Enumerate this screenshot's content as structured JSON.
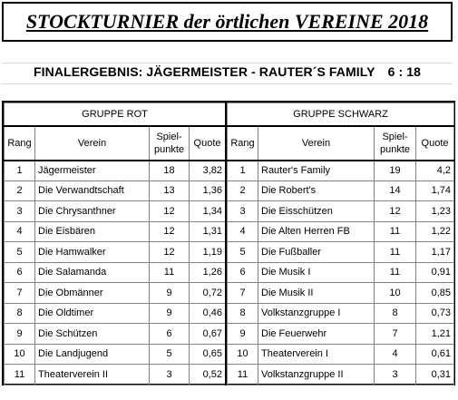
{
  "title": "STOCKTURNIER der örtlichen VEREINE 2018",
  "result": {
    "label": "FINALERGEBNIS: JÄGERMEISTER - RAUTER´S FAMILY",
    "score": "6 : 18"
  },
  "columns": {
    "rang": "Rang",
    "verein": "Verein",
    "spielpunkte_line1": "Spiel-",
    "spielpunkte_line2": "punkte",
    "quote": "Quote"
  },
  "groups": [
    {
      "name": "GRUPPE ROT",
      "rows": [
        {
          "rang": "1",
          "verein": "Jägermeister",
          "punkte": "18",
          "quote": "3,82"
        },
        {
          "rang": "2",
          "verein": "Die Verwandtschaft",
          "punkte": "13",
          "quote": "1,36"
        },
        {
          "rang": "3",
          "verein": "Die Chrysanthner",
          "punkte": "12",
          "quote": "1,34"
        },
        {
          "rang": "4",
          "verein": "Die Eisbären",
          "punkte": "12",
          "quote": "1,31"
        },
        {
          "rang": "5",
          "verein": "Die Hamwalker",
          "punkte": "12",
          "quote": "1,19"
        },
        {
          "rang": "6",
          "verein": "Die Salamanda",
          "punkte": "11",
          "quote": "1,26"
        },
        {
          "rang": "7",
          "verein": "Die Obmänner",
          "punkte": "9",
          "quote": "0,72"
        },
        {
          "rang": "8",
          "verein": "Die Oldtimer",
          "punkte": "9",
          "quote": "0,46"
        },
        {
          "rang": "9",
          "verein": "Die Schützen",
          "punkte": "6",
          "quote": "0,67"
        },
        {
          "rang": "10",
          "verein": "Die Landjugend",
          "punkte": "5",
          "quote": "0,65"
        },
        {
          "rang": "11",
          "verein": "Theaterverein II",
          "punkte": "3",
          "quote": "0,52"
        }
      ]
    },
    {
      "name": "GRUPPE SCHWARZ",
      "rows": [
        {
          "rang": "1",
          "verein": "Rauter's Family",
          "punkte": "19",
          "quote": "4,2"
        },
        {
          "rang": "2",
          "verein": "Die Robert's",
          "punkte": "14",
          "quote": "1,74"
        },
        {
          "rang": "3",
          "verein": "Die Eisschützen",
          "punkte": "12",
          "quote": "1,23"
        },
        {
          "rang": "4",
          "verein": "Die Alten Herren FB",
          "punkte": "11",
          "quote": "1,22"
        },
        {
          "rang": "5",
          "verein": "Die Fußballer",
          "punkte": "11",
          "quote": "1,17"
        },
        {
          "rang": "6",
          "verein": "Die Musik I",
          "punkte": "11",
          "quote": "0,91"
        },
        {
          "rang": "7",
          "verein": "Die Musik II",
          "punkte": "10",
          "quote": "0,85"
        },
        {
          "rang": "8",
          "verein": "Volkstanzgruppe I",
          "punkte": "8",
          "quote": "0,73"
        },
        {
          "rang": "9",
          "verein": "Die Feuerwehr",
          "punkte": "7",
          "quote": "1,21"
        },
        {
          "rang": "10",
          "verein": "Theaterverein I",
          "punkte": "4",
          "quote": "0,61"
        },
        {
          "rang": "11",
          "verein": "Volkstanzgruppe II",
          "punkte": "3",
          "quote": "0,31"
        }
      ]
    }
  ]
}
